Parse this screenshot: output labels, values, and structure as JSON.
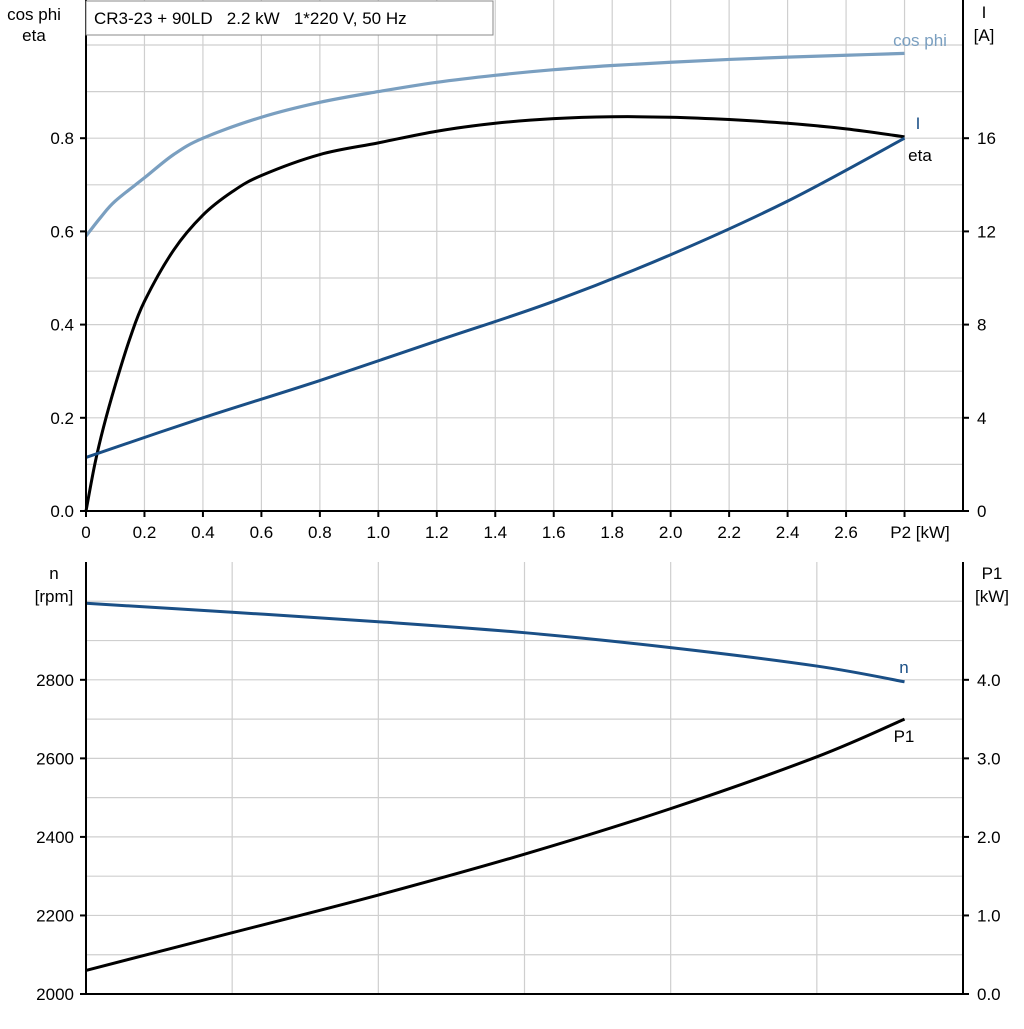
{
  "chart_data": [
    {
      "type": "line",
      "title": "CR3-23 + 90LD   2.2 kW   1*220 V, 50 Hz",
      "xlabel": "P2 [kW]",
      "ylabel_left": [
        "cos phi",
        "eta"
      ],
      "ylabel_right": [
        "I",
        "[A]"
      ],
      "xlim": [
        0,
        3.0
      ],
      "ylim_left": [
        0,
        1.1
      ],
      "ylim_right": [
        0,
        22
      ],
      "x_ticks": [
        "0",
        "0.2",
        "0.4",
        "0.6",
        "0.8",
        "1.0",
        "1.2",
        "1.4",
        "1.6",
        "1.8",
        "2.0",
        "2.2",
        "2.4",
        "2.6"
      ],
      "y_ticks_left": [
        "0.0",
        "0.2",
        "0.4",
        "0.6",
        "0.8"
      ],
      "y_ticks_right": [
        "0",
        "4",
        "8",
        "12",
        "16"
      ],
      "grid": true,
      "series": [
        {
          "name": "cos phi",
          "axis": "left",
          "color": "#7a9fc0",
          "x": [
            0,
            0.05,
            0.1,
            0.2,
            0.3,
            0.4,
            0.6,
            0.8,
            1.0,
            1.2,
            1.4,
            1.6,
            1.8,
            2.0,
            2.2,
            2.4,
            2.6,
            2.8
          ],
          "y": [
            0.59,
            0.63,
            0.665,
            0.715,
            0.765,
            0.8,
            0.845,
            0.877,
            0.9,
            0.92,
            0.935,
            0.947,
            0.956,
            0.963,
            0.969,
            0.974,
            0.978,
            0.982
          ]
        },
        {
          "name": "eta",
          "axis": "left",
          "color": "#000000",
          "x": [
            0,
            0.03,
            0.06,
            0.1,
            0.15,
            0.2,
            0.3,
            0.4,
            0.5,
            0.6,
            0.8,
            1.0,
            1.2,
            1.4,
            1.6,
            1.8,
            2.0,
            2.2,
            2.4,
            2.6,
            2.8
          ],
          "y": [
            0,
            0.1,
            0.18,
            0.27,
            0.37,
            0.45,
            0.56,
            0.635,
            0.685,
            0.72,
            0.765,
            0.79,
            0.815,
            0.832,
            0.842,
            0.846,
            0.845,
            0.84,
            0.832,
            0.82,
            0.803
          ]
        },
        {
          "name": "I",
          "axis": "right",
          "color": "#1a4f86",
          "x": [
            0,
            0.4,
            0.8,
            1.2,
            1.6,
            2.0,
            2.4,
            2.8
          ],
          "y": [
            2.3,
            4.0,
            5.6,
            7.3,
            9.0,
            11.0,
            13.3,
            16.0
          ]
        }
      ]
    },
    {
      "type": "line",
      "ylabel_left": [
        "n",
        "[rpm]"
      ],
      "ylabel_right": [
        "P1",
        "[kW]"
      ],
      "xlim": [
        0,
        3.0
      ],
      "ylim_left": [
        2000,
        3100
      ],
      "ylim_right": [
        0,
        5.5
      ],
      "y_ticks_left": [
        "2000",
        "2200",
        "2400",
        "2600",
        "2800"
      ],
      "y_ticks_right": [
        "0.0",
        "1.0",
        "2.0",
        "3.0",
        "4.0"
      ],
      "grid": true,
      "series": [
        {
          "name": "n",
          "axis": "left",
          "color": "#1a4f86",
          "x": [
            0,
            0.5,
            1.0,
            1.5,
            2.0,
            2.5,
            2.8
          ],
          "y": [
            2995,
            2972,
            2948,
            2920,
            2882,
            2835,
            2795
          ]
        },
        {
          "name": "P1",
          "axis": "right",
          "color": "#000000",
          "x": [
            0,
            0.5,
            1.0,
            1.5,
            2.0,
            2.5,
            2.8
          ],
          "y": [
            0.3,
            0.78,
            1.26,
            1.78,
            2.36,
            3.02,
            3.5
          ]
        }
      ]
    }
  ]
}
